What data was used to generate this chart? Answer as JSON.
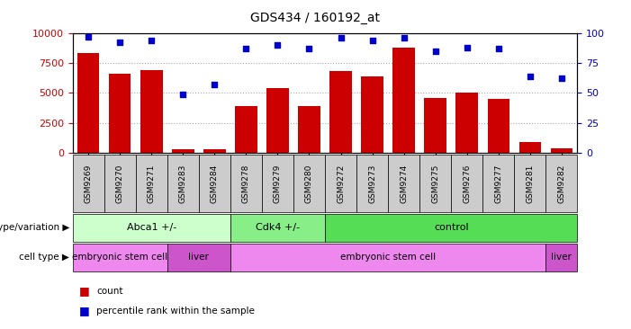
{
  "title": "GDS434 / 160192_at",
  "samples": [
    "GSM9269",
    "GSM9270",
    "GSM9271",
    "GSM9283",
    "GSM9284",
    "GSM9278",
    "GSM9279",
    "GSM9280",
    "GSM9272",
    "GSM9273",
    "GSM9274",
    "GSM9275",
    "GSM9276",
    "GSM9277",
    "GSM9281",
    "GSM9282"
  ],
  "counts": [
    8300,
    6600,
    6900,
    300,
    350,
    3900,
    5400,
    3900,
    6800,
    6400,
    8800,
    4600,
    5050,
    4500,
    900,
    400
  ],
  "percentiles": [
    97,
    92,
    94,
    49,
    57,
    87,
    90,
    87,
    96,
    94,
    96,
    85,
    88,
    87,
    64,
    62
  ],
  "ylim_left": [
    0,
    10000
  ],
  "ylim_right": [
    0,
    100
  ],
  "yticks_left": [
    0,
    2500,
    5000,
    7500,
    10000
  ],
  "yticks_right": [
    0,
    25,
    50,
    75,
    100
  ],
  "bar_color": "#cc0000",
  "dot_color": "#0000cc",
  "genotype_groups": [
    {
      "label": "Abca1 +/-",
      "start": 0,
      "end": 5,
      "color": "#ccffcc"
    },
    {
      "label": "Cdk4 +/-",
      "start": 5,
      "end": 8,
      "color": "#88ee88"
    },
    {
      "label": "control",
      "start": 8,
      "end": 16,
      "color": "#55dd55"
    }
  ],
  "celltype_groups": [
    {
      "label": "embryonic stem cell",
      "start": 0,
      "end": 3,
      "color": "#ee88ee"
    },
    {
      "label": "liver",
      "start": 3,
      "end": 5,
      "color": "#cc55cc"
    },
    {
      "label": "embryonic stem cell",
      "start": 5,
      "end": 15,
      "color": "#ee88ee"
    },
    {
      "label": "liver",
      "start": 15,
      "end": 16,
      "color": "#cc55cc"
    }
  ],
  "row_labels": [
    "genotype/variation",
    "cell type"
  ],
  "legend_items": [
    {
      "label": "count",
      "color": "#cc0000"
    },
    {
      "label": "percentile rank within the sample",
      "color": "#0000cc"
    }
  ],
  "grid_color": "#aaaaaa",
  "bg_color": "#ffffff",
  "plot_bg": "#ffffff",
  "tick_color_left": "#cc0000",
  "tick_color_right": "#0000cc",
  "xtick_bg": "#cccccc"
}
